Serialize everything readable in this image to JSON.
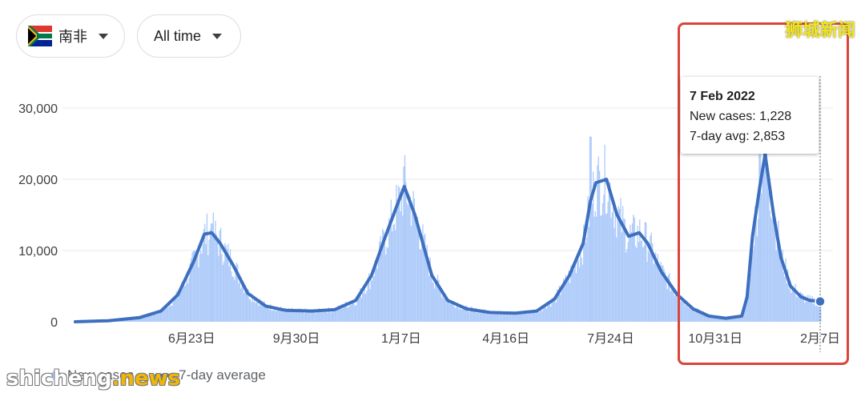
{
  "filters": {
    "region": {
      "label": "南非",
      "icon": "south-africa-flag-icon"
    },
    "time_range": {
      "label": "All time"
    }
  },
  "tooltip": {
    "date": "7 Feb 2022",
    "new_cases": "New cases: 1,228",
    "avg": "7-day avg: 2,853"
  },
  "legend": {
    "new_cases": "New cases",
    "avg": "7-day average"
  },
  "watermarks": {
    "top_right": "狮城新闻",
    "bottom_left_a": "shicheng",
    "bottom_left_b": ".news"
  },
  "colors": {
    "bars": "#aecbfa",
    "line": "#3e6fbf",
    "highlight": "#d9453b"
  },
  "chart_data": {
    "type": "area",
    "title": "",
    "xlabel": "",
    "ylabel": "",
    "ylim": [
      0,
      30000
    ],
    "y_ticks": [
      0,
      10000,
      20000,
      30000
    ],
    "y_tick_labels": [
      "0",
      "10,000",
      "20,000",
      "30,000"
    ],
    "x_tick_labels": [
      "6月23日",
      "9月30日",
      "1月7日",
      "4月16日",
      "7月24日",
      "10月31日",
      "2月7日"
    ],
    "x_tick_dates": [
      "2020-06-23",
      "2020-09-30",
      "2021-01-07",
      "2021-04-16",
      "2021-07-24",
      "2021-10-31",
      "2022-02-07"
    ],
    "xlim": [
      "2020-03-05",
      "2022-02-07"
    ],
    "grid": true,
    "legend_position": "bottom-left",
    "series": [
      {
        "name": "7-day average",
        "x": [
          "2020-03-05",
          "2020-04-05",
          "2020-05-05",
          "2020-05-25",
          "2020-06-10",
          "2020-06-25",
          "2020-07-05",
          "2020-07-12",
          "2020-07-20",
          "2020-08-01",
          "2020-08-15",
          "2020-09-01",
          "2020-09-20",
          "2020-10-15",
          "2020-11-05",
          "2020-11-25",
          "2020-12-10",
          "2020-12-22",
          "2021-01-01",
          "2021-01-10",
          "2021-01-20",
          "2021-02-05",
          "2021-02-20",
          "2021-03-10",
          "2021-04-01",
          "2021-04-25",
          "2021-05-15",
          "2021-06-01",
          "2021-06-15",
          "2021-06-28",
          "2021-07-05",
          "2021-07-10",
          "2021-07-20",
          "2021-07-30",
          "2021-08-10",
          "2021-08-20",
          "2021-08-28",
          "2021-09-10",
          "2021-09-25",
          "2021-10-10",
          "2021-10-25",
          "2021-11-10",
          "2021-11-25",
          "2021-11-30",
          "2021-12-05",
          "2021-12-12",
          "2021-12-17",
          "2021-12-25",
          "2022-01-01",
          "2022-01-10",
          "2022-01-20",
          "2022-01-28",
          "2022-02-07"
        ],
        "y": [
          0,
          150,
          600,
          1500,
          3800,
          8500,
          12300,
          12500,
          11000,
          8000,
          4000,
          2200,
          1600,
          1500,
          1700,
          3000,
          6500,
          11500,
          15500,
          19000,
          15000,
          6500,
          3000,
          1800,
          1300,
          1200,
          1500,
          3200,
          6500,
          11000,
          17000,
          19500,
          20000,
          15000,
          12000,
          12500,
          11000,
          7000,
          3800,
          1800,
          800,
          500,
          800,
          3500,
          12000,
          19000,
          23500,
          15000,
          9000,
          5000,
          3500,
          3000,
          2853
        ]
      },
      {
        "name": "New cases",
        "x": [
          "2020-07-12",
          "2021-01-10",
          "2021-07-05",
          "2021-12-12",
          "2022-02-07"
        ],
        "y": [
          13800,
          21800,
          26000,
          23500,
          1228
        ]
      }
    ]
  }
}
